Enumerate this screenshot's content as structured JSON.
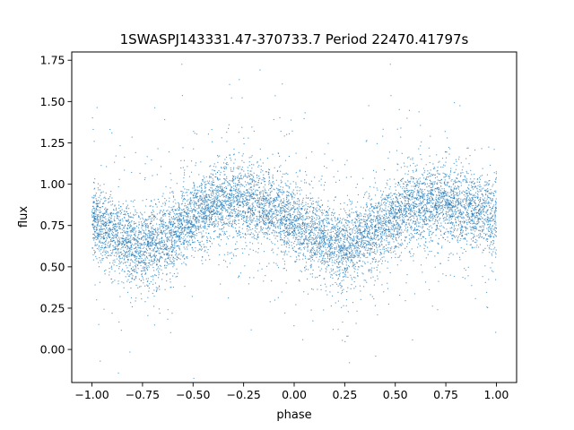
{
  "chart_data": {
    "type": "scatter",
    "title": "1SWASPJ143331.47-370733.7 Period 22470.41797s",
    "xlabel": "phase",
    "ylabel": "flux",
    "xlim": [
      -1.1,
      1.1
    ],
    "ylim": [
      -0.2,
      1.8
    ],
    "xticks": [
      -1.0,
      -0.75,
      -0.5,
      -0.25,
      0.0,
      0.25,
      0.5,
      0.75,
      1.0
    ],
    "xtick_labels": [
      "−1.00",
      "−0.75",
      "−0.50",
      "−0.25",
      "0.00",
      "0.25",
      "0.50",
      "0.75",
      "1.00"
    ],
    "yticks": [
      0.0,
      0.25,
      0.5,
      0.75,
      1.0,
      1.25,
      1.5,
      1.75
    ],
    "ytick_labels": [
      "0.00",
      "0.25",
      "0.50",
      "0.75",
      "1.00",
      "1.25",
      "1.50",
      "1.75"
    ],
    "grid": false,
    "legend": "none",
    "marker_color": "#1f77b4",
    "trend": {
      "phase": [
        -1.0,
        -0.9,
        -0.8,
        -0.75,
        -0.6,
        -0.5,
        -0.4,
        -0.3,
        -0.25,
        -0.1,
        0.0,
        0.1,
        0.2,
        0.25,
        0.35,
        0.5,
        0.6,
        0.7,
        0.75,
        0.9,
        1.0
      ],
      "flux": [
        0.78,
        0.7,
        0.64,
        0.62,
        0.7,
        0.8,
        0.87,
        0.9,
        0.89,
        0.83,
        0.77,
        0.7,
        0.64,
        0.62,
        0.68,
        0.8,
        0.87,
        0.9,
        0.89,
        0.84,
        0.78
      ]
    },
    "scatter_sigma": 0.11
  }
}
